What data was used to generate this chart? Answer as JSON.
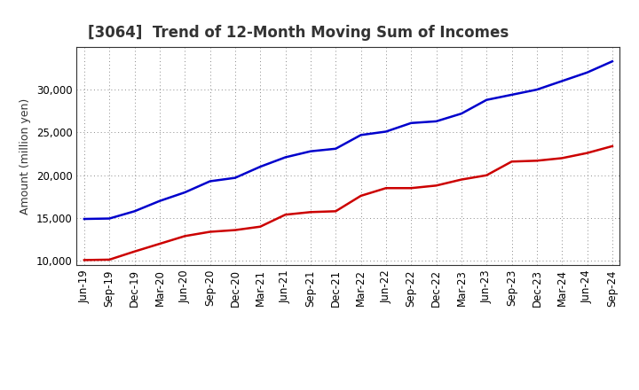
{
  "title": "[3064]  Trend of 12-Month Moving Sum of Incomes",
  "ylabel": "Amount (million yen)",
  "background_color": "#ffffff",
  "plot_bg_color": "#ffffff",
  "grid_color": "#888888",
  "ordinary_income_color": "#0000cc",
  "net_income_color": "#cc0000",
  "line_width": 1.8,
  "ylim": [
    9500,
    35000
  ],
  "yticks": [
    10000,
    15000,
    20000,
    25000,
    30000
  ],
  "x_labels": [
    "Jun-19",
    "Sep-19",
    "Dec-19",
    "Mar-20",
    "Jun-20",
    "Sep-20",
    "Dec-20",
    "Mar-21",
    "Jun-21",
    "Sep-21",
    "Dec-21",
    "Mar-22",
    "Jun-22",
    "Sep-22",
    "Dec-22",
    "Mar-23",
    "Jun-23",
    "Sep-23",
    "Dec-23",
    "Mar-24",
    "Jun-24",
    "Sep-24"
  ],
  "ordinary_income": [
    14900,
    14950,
    15800,
    17000,
    18000,
    19300,
    19700,
    21000,
    22100,
    22800,
    23100,
    24700,
    25100,
    26100,
    26300,
    27200,
    28800,
    29400,
    30000,
    31000,
    32000,
    33300
  ],
  "net_income": [
    10100,
    10150,
    11100,
    12000,
    12900,
    13400,
    13600,
    14000,
    15400,
    15700,
    15800,
    17600,
    18500,
    18500,
    18800,
    19500,
    20000,
    21600,
    21700,
    22000,
    22600,
    23400
  ],
  "title_fontsize": 12,
  "title_color": "#333333",
  "axis_fontsize": 9,
  "tick_fontsize": 8.5,
  "legend_fontsize": 9
}
